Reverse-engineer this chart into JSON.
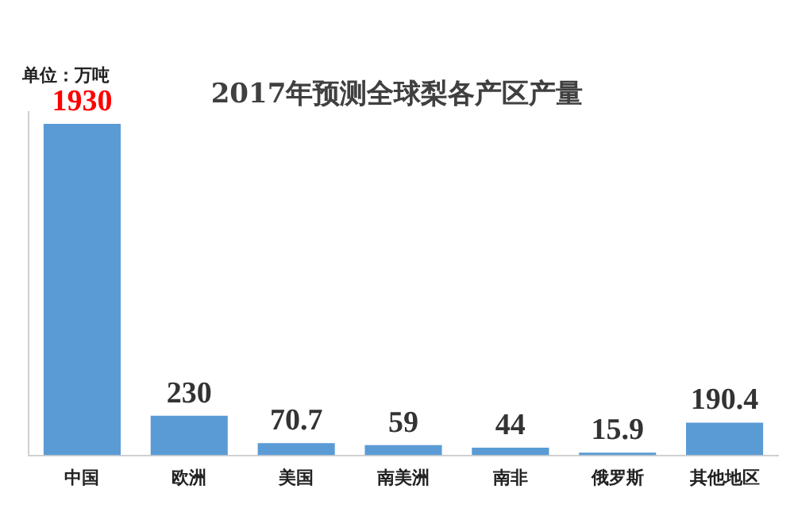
{
  "chart_data": {
    "type": "bar",
    "title": "2017年预测全球梨各产区产量",
    "annotations": [
      "单位：万吨"
    ],
    "categories": [
      "中国",
      "欧洲",
      "美国",
      "南美洲",
      "南非",
      "俄罗斯",
      "其他地区"
    ],
    "values": [
      1930,
      230,
      70.7,
      59,
      44,
      15.9,
      190.4
    ],
    "color": "#5b9bd5",
    "data_labels": true,
    "grid": false,
    "legend": false,
    "tick_labels": "x"
  }
}
